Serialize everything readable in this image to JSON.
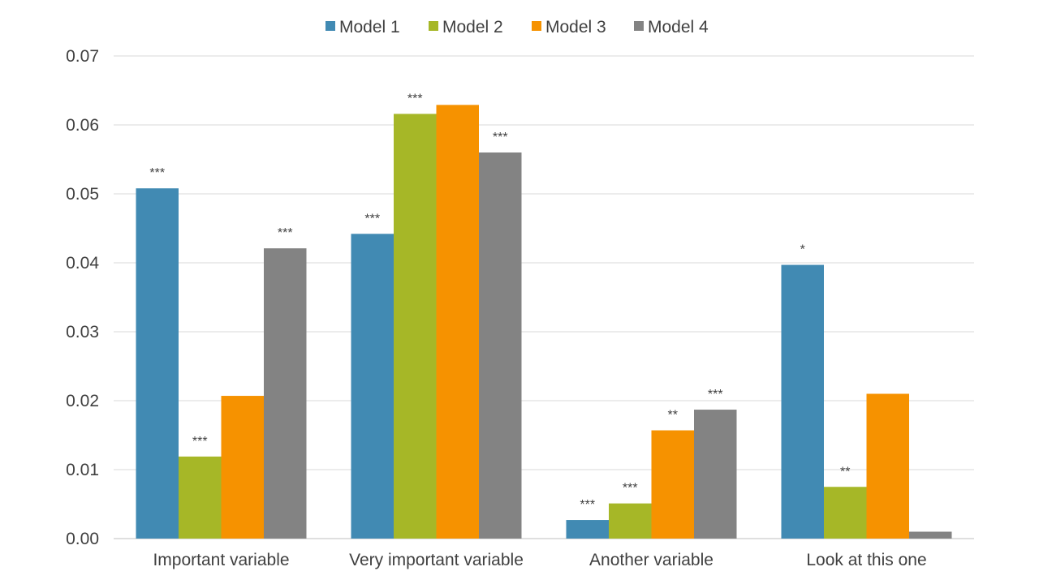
{
  "chart_data": {
    "type": "bar",
    "title": "",
    "xlabel": "",
    "ylabel": "",
    "ylim": [
      0,
      0.07
    ],
    "yticks": [
      "0.00",
      "0.01",
      "0.02",
      "0.03",
      "0.04",
      "0.05",
      "0.06",
      "0.07"
    ],
    "grid": true,
    "legend_position": "top-center",
    "categories": [
      "Important variable",
      "Very important variable",
      "Another variable",
      "Look at this one"
    ],
    "series": [
      {
        "name": "Model 1",
        "color": "#418AB3",
        "values": [
          0.0508,
          0.0442,
          0.0027,
          0.0397
        ],
        "significance": [
          "***",
          "***",
          "***",
          "*"
        ]
      },
      {
        "name": "Model 2",
        "color": "#A6B727",
        "values": [
          0.0119,
          0.0616,
          0.0051,
          0.0075
        ],
        "significance": [
          "***",
          "***",
          "***",
          "**"
        ]
      },
      {
        "name": "Model 3",
        "color": "#F69200",
        "values": [
          0.0207,
          0.0629,
          0.0157,
          0.021
        ],
        "significance": [
          "",
          "",
          "**",
          ""
        ]
      },
      {
        "name": "Model 4",
        "color": "#838383",
        "values": [
          0.0421,
          0.056,
          0.0187,
          0.001
        ],
        "significance": [
          "***",
          "***",
          "***",
          ""
        ]
      }
    ]
  }
}
